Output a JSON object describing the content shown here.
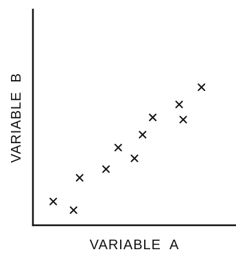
{
  "chart_data": {
    "type": "scatter",
    "xlabel": "VARIABLE  A",
    "ylabel": "VARIABLE  B",
    "marker": "x",
    "grid": false,
    "ticks": false,
    "xlim": [
      0,
      100
    ],
    "ylim": [
      0,
      100
    ],
    "points": [
      {
        "x": 10,
        "y": 11
      },
      {
        "x": 20,
        "y": 7
      },
      {
        "x": 23,
        "y": 22
      },
      {
        "x": 36,
        "y": 26
      },
      {
        "x": 42,
        "y": 36
      },
      {
        "x": 50,
        "y": 31
      },
      {
        "x": 54,
        "y": 42
      },
      {
        "x": 59,
        "y": 50
      },
      {
        "x": 72,
        "y": 56
      },
      {
        "x": 74,
        "y": 49
      },
      {
        "x": 83,
        "y": 64
      }
    ],
    "colors": {
      "axis": "#111111",
      "marker": "#111111"
    }
  }
}
